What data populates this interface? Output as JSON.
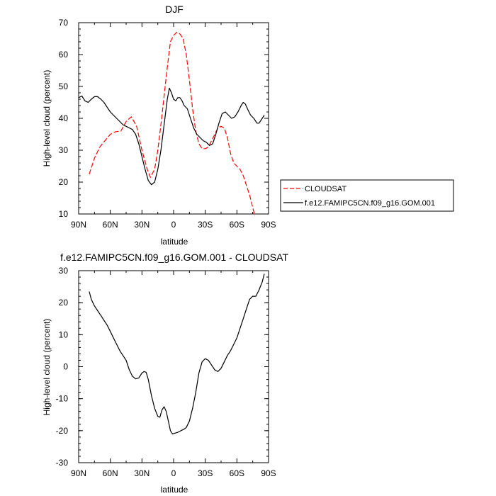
{
  "chart_data": [
    {
      "type": "line",
      "title": "DJF",
      "xlabel": "latitude",
      "ylabel": "High-level cloud (percent)",
      "xlim": [
        -90,
        90
      ],
      "ylim": [
        10,
        70
      ],
      "x_ticks": [
        -90,
        -60,
        -30,
        0,
        30,
        60,
        90
      ],
      "x_tick_labels": [
        "90N",
        "60N",
        "30N",
        "0",
        "30S",
        "60S",
        "90S"
      ],
      "y_ticks": [
        10,
        20,
        30,
        40,
        50,
        60,
        70
      ],
      "y_tick_labels": [
        "10",
        "20",
        "30",
        "40",
        "50",
        "60",
        "70"
      ],
      "legend": "right-middle",
      "series": [
        {
          "name": "CLOUDSAT",
          "color": "#ff0000",
          "dash": "dashed",
          "points": [
            [
              -80,
              22.5
            ],
            [
              -75,
              27.5
            ],
            [
              -70,
              31
            ],
            [
              -65,
              33
            ],
            [
              -60,
              35
            ],
            [
              -55,
              35.8
            ],
            [
              -50,
              36
            ],
            [
              -45,
              39
            ],
            [
              -40,
              40.5
            ],
            [
              -35,
              37.5
            ],
            [
              -30,
              30
            ],
            [
              -25,
              24
            ],
            [
              -22,
              21.5
            ],
            [
              -18,
              24
            ],
            [
              -15,
              30
            ],
            [
              -12,
              38
            ],
            [
              -9,
              47
            ],
            [
              -6,
              56
            ],
            [
              -3,
              64
            ],
            [
              0,
              66
            ],
            [
              3,
              67
            ],
            [
              6,
              66.5
            ],
            [
              9,
              65
            ],
            [
              12,
              60
            ],
            [
              15,
              52
            ],
            [
              18,
              43
            ],
            [
              21,
              36
            ],
            [
              24,
              32
            ],
            [
              27,
              30.5
            ],
            [
              30,
              30.5
            ],
            [
              33,
              31
            ],
            [
              36,
              33
            ],
            [
              39,
              35
            ],
            [
              42,
              37
            ],
            [
              45,
              37.5
            ],
            [
              48,
              37
            ],
            [
              51,
              34
            ],
            [
              54,
              29
            ],
            [
              57,
              26
            ],
            [
              60,
              25
            ],
            [
              63,
              24
            ],
            [
              66,
              22
            ],
            [
              69,
              19
            ],
            [
              72,
              16
            ],
            [
              75,
              12
            ],
            [
              77,
              9.5
            ]
          ]
        },
        {
          "name": "f.e12.FAMIPC5CN.f09_g16.GOM.001",
          "color": "#000000",
          "dash": "solid",
          "points": [
            [
              -90,
              46.5
            ],
            [
              -87,
              47
            ],
            [
              -84,
              45.5
            ],
            [
              -81,
              45
            ],
            [
              -78,
              46
            ],
            [
              -75,
              46.8
            ],
            [
              -72,
              46.8
            ],
            [
              -69,
              46
            ],
            [
              -66,
              45
            ],
            [
              -63,
              43.5
            ],
            [
              -60,
              42
            ],
            [
              -57,
              41
            ],
            [
              -54,
              40
            ],
            [
              -51,
              39
            ],
            [
              -48,
              38
            ],
            [
              -45,
              37.5
            ],
            [
              -42,
              37
            ],
            [
              -39,
              36.5
            ],
            [
              -36,
              35
            ],
            [
              -33,
              32
            ],
            [
              -30,
              28
            ],
            [
              -27,
              24
            ],
            [
              -24,
              20.5
            ],
            [
              -21,
              19.2
            ],
            [
              -18,
              20
            ],
            [
              -15,
              24
            ],
            [
              -12,
              30
            ],
            [
              -9,
              38
            ],
            [
              -6,
              46
            ],
            [
              -4,
              49.5
            ],
            [
              -2,
              48
            ],
            [
              0,
              46
            ],
            [
              2,
              45.5
            ],
            [
              4,
              46.5
            ],
            [
              6,
              46.5
            ],
            [
              8,
              45.5
            ],
            [
              10,
              44
            ],
            [
              13,
              43
            ],
            [
              16,
              40
            ],
            [
              19,
              37
            ],
            [
              22,
              35
            ],
            [
              25,
              34
            ],
            [
              28,
              33
            ],
            [
              31,
              32.5
            ],
            [
              34,
              31.5
            ],
            [
              37,
              32
            ],
            [
              40,
              35
            ],
            [
              43,
              38.5
            ],
            [
              46,
              41.5
            ],
            [
              49,
              42
            ],
            [
              52,
              41
            ],
            [
              55,
              40
            ],
            [
              58,
              40.5
            ],
            [
              61,
              42
            ],
            [
              64,
              44
            ],
            [
              66,
              45
            ],
            [
              68,
              44.5
            ],
            [
              70,
              43
            ],
            [
              73,
              41
            ],
            [
              76,
              40
            ],
            [
              79,
              38.5
            ],
            [
              81,
              38.5
            ],
            [
              84,
              40
            ],
            [
              86,
              41
            ]
          ]
        }
      ]
    },
    {
      "type": "line",
      "title": "f.e12.FAMIPC5CN.f09_g16.GOM.001 - CLOUDSAT",
      "xlabel": "latitude",
      "ylabel": "High-level cloud (percent)",
      "xlim": [
        -90,
        90
      ],
      "ylim": [
        -30,
        30
      ],
      "x_ticks": [
        -90,
        -60,
        -30,
        0,
        30,
        60,
        90
      ],
      "x_tick_labels": [
        "90N",
        "60N",
        "30N",
        "0",
        "30S",
        "60S",
        "90S"
      ],
      "y_ticks": [
        -30,
        -20,
        -10,
        0,
        10,
        20,
        30
      ],
      "y_tick_labels": [
        "-30",
        "-20",
        "-10",
        "0",
        "10",
        "20",
        "30"
      ],
      "series": [
        {
          "color": "#000000",
          "dash": "solid",
          "points": [
            [
              -80,
              23.5
            ],
            [
              -78,
              21
            ],
            [
              -75,
              19
            ],
            [
              -72,
              17.5
            ],
            [
              -69,
              16
            ],
            [
              -66,
              14.5
            ],
            [
              -63,
              13
            ],
            [
              -60,
              11
            ],
            [
              -57,
              9
            ],
            [
              -54,
              7
            ],
            [
              -51,
              5
            ],
            [
              -48,
              3.5
            ],
            [
              -45,
              2
            ],
            [
              -42,
              -1
            ],
            [
              -39,
              -3
            ],
            [
              -36,
              -3.8
            ],
            [
              -33,
              -3.5
            ],
            [
              -30,
              -2
            ],
            [
              -28,
              -1.5
            ],
            [
              -26,
              -1.8
            ],
            [
              -24,
              -4
            ],
            [
              -21,
              -9
            ],
            [
              -18,
              -13
            ],
            [
              -15,
              -15.5
            ],
            [
              -13,
              -15.8
            ],
            [
              -11,
              -13.5
            ],
            [
              -9,
              -12.5
            ],
            [
              -7,
              -14
            ],
            [
              -5,
              -17
            ],
            [
              -3,
              -20
            ],
            [
              -1,
              -21
            ],
            [
              1,
              -20.8
            ],
            [
              4,
              -20.5
            ],
            [
              7,
              -20
            ],
            [
              10,
              -19.5
            ],
            [
              12,
              -19
            ],
            [
              15,
              -17
            ],
            [
              18,
              -13
            ],
            [
              21,
              -8
            ],
            [
              24,
              -2
            ],
            [
              27,
              1.5
            ],
            [
              30,
              2.5
            ],
            [
              33,
              2
            ],
            [
              36,
              0.5
            ],
            [
              39,
              -1
            ],
            [
              42,
              -1.5
            ],
            [
              45,
              -0.5
            ],
            [
              48,
              1.5
            ],
            [
              51,
              3.5
            ],
            [
              54,
              5
            ],
            [
              57,
              7
            ],
            [
              60,
              9
            ],
            [
              63,
              12
            ],
            [
              66,
              15
            ],
            [
              69,
              18
            ],
            [
              72,
              21
            ],
            [
              75,
              22
            ],
            [
              78,
              22
            ],
            [
              81,
              24
            ],
            [
              84,
              26.5
            ],
            [
              86,
              29
            ]
          ]
        }
      ]
    }
  ]
}
